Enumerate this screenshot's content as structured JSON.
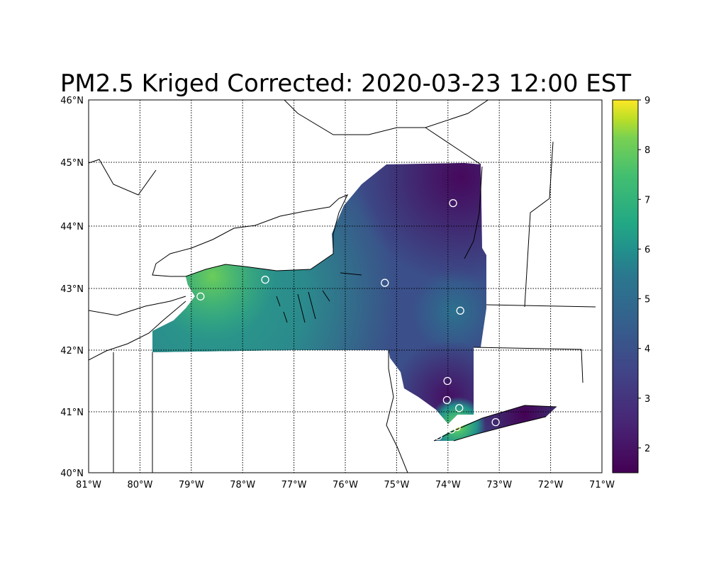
{
  "title": "PM2.5 Kriged Corrected: 2020-03-23 12:00 EST",
  "map": {
    "projection": "cylindrical lon/lat",
    "lon_range": [
      -81,
      -71
    ],
    "lat_range": [
      40,
      46
    ],
    "gridlines": "dotted",
    "lon_ticks": [
      "81°W",
      "80°W",
      "79°W",
      "78°W",
      "77°W",
      "76°W",
      "75°W",
      "74°W",
      "73°W",
      "72°W",
      "71°W"
    ],
    "lat_ticks": [
      "40°N",
      "41°N",
      "42°N",
      "43°N",
      "44°N",
      "45°N",
      "46°N"
    ],
    "region": "New York State",
    "stations": [
      {
        "lon": -73.9,
        "lat": 44.36
      },
      {
        "lon": -75.23,
        "lat": 43.09
      },
      {
        "lon": -73.76,
        "lat": 42.64
      },
      {
        "lon": -77.56,
        "lat": 43.14
      },
      {
        "lon": -78.82,
        "lat": 42.87
      },
      {
        "lon": -74.01,
        "lat": 41.5
      },
      {
        "lon": -74.02,
        "lat": 41.19
      },
      {
        "lon": -73.78,
        "lat": 41.06
      },
      {
        "lon": -73.07,
        "lat": 40.83
      },
      {
        "lon": -73.83,
        "lat": 40.75
      },
      {
        "lon": -73.93,
        "lat": 40.71
      },
      {
        "lon": -74.19,
        "lat": 40.6
      }
    ]
  },
  "colorbar": {
    "colormap": "viridis",
    "range": [
      1.5,
      9
    ],
    "ticks": [
      "2",
      "3",
      "4",
      "5",
      "6",
      "7",
      "8",
      "9"
    ],
    "colors": [
      "#440154",
      "#46327e",
      "#365c8d",
      "#277f8e",
      "#1fa187",
      "#4ac16d",
      "#a0da39",
      "#fde725"
    ]
  }
}
